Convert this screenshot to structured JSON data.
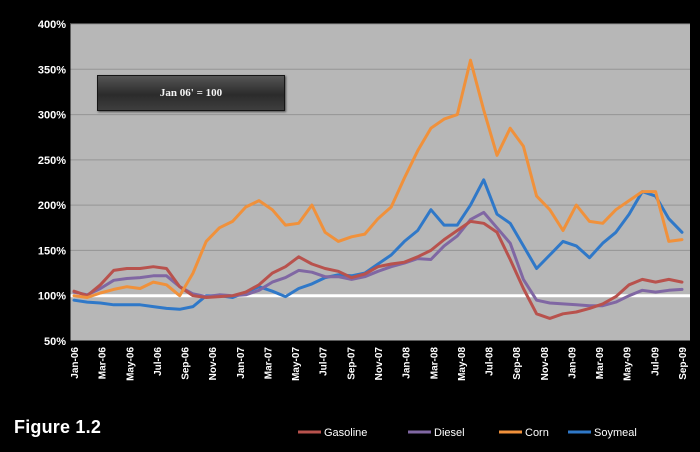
{
  "figure_label": "Figure 1.2",
  "annotation": "Jan 06' = 100",
  "colors": {
    "background": "#000000",
    "plot_background": "#b7b7b7",
    "gridline": "#959595",
    "baseline": "#ffffff",
    "gasoline": "#b8524d",
    "diesel": "#8067a3",
    "corn": "#f0913b",
    "soymeal": "#2f78c8"
  },
  "chart_data": {
    "type": "line",
    "title": "",
    "xlabel": "",
    "ylabel": "",
    "y_ticks": [
      "50%",
      "100%",
      "150%",
      "200%",
      "250%",
      "300%",
      "350%",
      "400%"
    ],
    "ylim": [
      50,
      400
    ],
    "x_ticks": [
      "Jan-06",
      "Mar-06",
      "May-06",
      "Jul-06",
      "Sep-06",
      "Nov-06",
      "Jan-07",
      "Mar-07",
      "May-07",
      "Jul-07",
      "Sep-07",
      "Nov-07",
      "Jan-08",
      "Mar-08",
      "May-08",
      "Jul-08",
      "Sep-08",
      "Nov-08",
      "Jan-09",
      "Mar-09",
      "May-09",
      "Jul-09",
      "Sep-09"
    ],
    "baseline": 100,
    "grid": true,
    "legend_position": "bottom-right",
    "series": [
      {
        "name": "Gasoline",
        "color": "#b8524d",
        "values": [
          105,
          100,
          112,
          128,
          130,
          130,
          132,
          130,
          110,
          100,
          98,
          99,
          100,
          104,
          112,
          125,
          132,
          143,
          135,
          130,
          127,
          120,
          124,
          132,
          135,
          137,
          143,
          150,
          162,
          172,
          182,
          180,
          170,
          140,
          108,
          80,
          75,
          80,
          82,
          86,
          91,
          99,
          112,
          118,
          115,
          118,
          115
        ]
      },
      {
        "name": "Diesel",
        "color": "#8067a3",
        "values": [
          104,
          101,
          108,
          117,
          119,
          120,
          122,
          122,
          110,
          102,
          99,
          101,
          100,
          101,
          106,
          115,
          120,
          128,
          126,
          121,
          121,
          118,
          121,
          127,
          132,
          136,
          141,
          140,
          155,
          166,
          184,
          192,
          175,
          158,
          118,
          95,
          92,
          91,
          90,
          89,
          89,
          93,
          100,
          106,
          104,
          106,
          107
        ]
      },
      {
        "name": "Corn",
        "color": "#f0913b",
        "values": [
          100,
          98,
          103,
          107,
          110,
          108,
          115,
          112,
          100,
          125,
          160,
          175,
          182,
          198,
          205,
          195,
          178,
          180,
          200,
          170,
          160,
          165,
          168,
          185,
          198,
          230,
          260,
          285,
          295,
          300,
          360,
          305,
          255,
          285,
          265,
          210,
          195,
          172,
          200,
          182,
          180,
          195,
          205,
          215,
          215,
          160,
          162
        ]
      },
      {
        "name": "Soymeal",
        "color": "#2f78c8",
        "values": [
          95,
          93,
          92,
          90,
          90,
          90,
          88,
          86,
          85,
          88,
          100,
          100,
          98,
          104,
          110,
          105,
          99,
          108,
          113,
          120,
          123,
          122,
          125,
          135,
          145,
          160,
          172,
          195,
          178,
          178,
          200,
          228,
          190,
          180,
          155,
          130,
          145,
          160,
          155,
          142,
          158,
          170,
          190,
          215,
          210,
          185,
          170
        ]
      }
    ]
  }
}
